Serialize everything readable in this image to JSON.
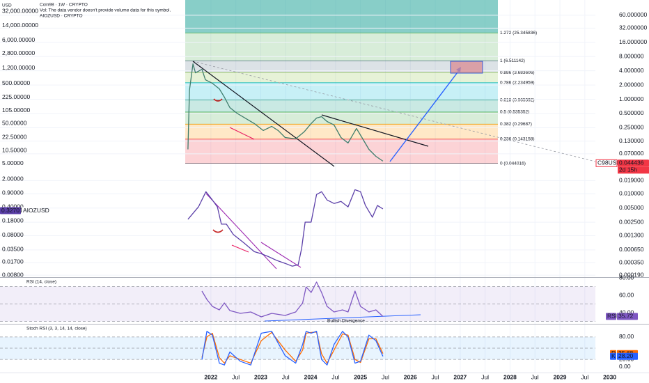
{
  "chart_data": [
    {
      "type": "line",
      "title": "Coin98 · 1W · CRYPTO",
      "subtitle": "Vol: The data vendor doesn't provide volume data for this symbol.",
      "y2label": "USD",
      "log_scale": true,
      "grid": true,
      "xlim": [
        2017.77,
        2030.41
      ],
      "xticks": [
        2022,
        {
          "value": 2022.5,
          "label": "Jul"
        },
        2023,
        {
          "value": 2023.5,
          "label": "Jul"
        },
        2024,
        {
          "value": 2024.5,
          "label": "Jul"
        },
        2025,
        {
          "value": 2025.5,
          "label": "Jul"
        },
        2026,
        {
          "value": 2026.5,
          "label": "Jul"
        },
        2027,
        {
          "value": 2027.5,
          "label": "Jul"
        },
        2028,
        {
          "value": 2028.5,
          "label": "Jul"
        },
        2029,
        {
          "value": 2029.5,
          "label": "Jul"
        },
        2030
      ],
      "ylim": [
        0.000172,
        126
      ],
      "yticks": [
        {
          "value": 60,
          "label": "60.000000"
        },
        {
          "value": 32,
          "label": "32.000000"
        },
        {
          "value": 16,
          "label": "16.000000"
        },
        {
          "value": 8,
          "label": "8.000000"
        },
        {
          "value": 4,
          "label": "4.000000"
        },
        {
          "value": 2,
          "label": "2.000000"
        },
        {
          "value": 1,
          "label": "1.000000"
        },
        {
          "value": 0.5,
          "label": "0.500000"
        },
        {
          "value": 0.25,
          "label": "0.250000"
        },
        {
          "value": 0.13,
          "label": "0.130000"
        },
        {
          "value": 0.07,
          "label": "0.070000"
        },
        {
          "value": 0.019,
          "label": "0.019000"
        },
        {
          "value": 0.01,
          "label": "0.010000"
        },
        {
          "value": 0.005,
          "label": "0.005000"
        },
        {
          "value": 0.0025,
          "label": "0.002500"
        },
        {
          "value": 0.0013,
          "label": "0.001300"
        },
        {
          "value": 0.00065,
          "label": "0.000650"
        },
        {
          "value": 0.00035,
          "label": "0.000350"
        },
        {
          "value": 0.00019,
          "label": "0.000190"
        }
      ],
      "y2lim": [
        0.0071,
        60800
      ],
      "y2ticks": [
        {
          "value": 32000,
          "label": "32,000.00000"
        },
        {
          "value": 14000,
          "label": "14,000.00000"
        },
        {
          "value": 6000,
          "label": "6,000.00000"
        },
        {
          "value": 2800,
          "label": "2,800.00000"
        },
        {
          "value": 1200,
          "label": "1,200.00000"
        },
        {
          "value": 500,
          "label": "500.00000"
        },
        {
          "value": 225,
          "label": "225.00000"
        },
        {
          "value": 105,
          "label": "105.00000"
        },
        {
          "value": 50,
          "label": "50.00000"
        },
        {
          "value": 22.5,
          "label": "22.50000"
        },
        {
          "value": 10.5,
          "label": "10.50000"
        },
        {
          "value": 5,
          "label": "5.00000"
        },
        {
          "value": 2,
          "label": "2.00000"
        },
        {
          "value": 0.9,
          "label": "0.90000"
        },
        {
          "value": 0.4,
          "label": "0.40000"
        },
        {
          "value": 0.18,
          "label": "0.18000"
        },
        {
          "value": 0.08,
          "label": "0.08000"
        },
        {
          "value": 0.035,
          "label": "0.03500"
        },
        {
          "value": 0.017,
          "label": "0.01700"
        },
        {
          "value": 0.008,
          "label": "0.00800"
        }
      ],
      "series": [
        {
          "name": "C98USD",
          "color": "#3e7d6c",
          "tag_color": "#f23645",
          "last": 0.044436,
          "countdown": "2d 15h",
          "x": [
            2021.54,
            2021.57,
            2021.64,
            2021.69,
            2021.82,
            2021.89,
            2022.03,
            2022.17,
            2022.27,
            2022.38,
            2022.52,
            2022.73,
            2022.87,
            2023.05,
            2023.22,
            2023.35,
            2023.49,
            2023.7,
            2023.87,
            2024.01,
            2024.12,
            2024.22,
            2024.33,
            2024.47,
            2024.61,
            2024.75,
            2024.92,
            2025.03,
            2025.17,
            2025.31,
            2025.45
          ],
          "values": [
            0.087,
            1.55,
            5.62,
            3.62,
            4.29,
            2.58,
            2.18,
            1.66,
            1.11,
            0.667,
            0.508,
            0.375,
            0.306,
            0.218,
            0.267,
            0.218,
            0.155,
            0.145,
            0.204,
            0.306,
            0.401,
            0.429,
            0.338,
            0.286,
            0.155,
            0.119,
            0.241,
            0.155,
            0.087,
            0.062,
            0.049
          ]
        },
        {
          "name": "AIOZUSD",
          "legend": "AIOZUSD · CRYPTO",
          "axis": "y2",
          "color": "#5b3fa8",
          "last": 0.32701,
          "x": [
            2021.54,
            2021.75,
            2021.9,
            2022.03,
            2022.13,
            2022.21,
            2022.31,
            2022.45,
            2022.66,
            2022.87,
            2023.01,
            2023.15,
            2023.33,
            2023.49,
            2023.63,
            2023.75,
            2023.82,
            2023.89,
            2024.01,
            2024.12,
            2024.22,
            2024.33,
            2024.47,
            2024.61,
            2024.75,
            2024.89,
            2025.0,
            2025.1,
            2025.24,
            2025.34,
            2025.45
          ],
          "values": [
            0.199,
            0.406,
            0.972,
            0.604,
            0.406,
            0.15,
            0.15,
            0.083,
            0.0515,
            0.0308,
            0.0273,
            0.0233,
            0.0184,
            0.0157,
            0.0134,
            0.0145,
            0.0375,
            0.169,
            0.169,
            0.83,
            0.972,
            0.604,
            0.495,
            0.557,
            0.406,
            1.09,
            0.972,
            0.44,
            0.224,
            0.44,
            0.361
          ]
        }
      ],
      "fib_top_color": "#26a69a",
      "fib_levels": [
        {
          "value": 0.044016,
          "label": "0 (0.044016)",
          "color": "#787b86"
        },
        {
          "value": 0.143158,
          "label": "0.236 (0.143158)",
          "color": "#f23645"
        },
        {
          "value": 0.29687,
          "label": "0.382 (0.29687)",
          "color": "#ff9800"
        },
        {
          "value": 0.535352,
          "label": "0.5 (0.535352)",
          "color": "#4caf50"
        },
        {
          "value": 0.965592,
          "label": "0.618 (0.965592)",
          "color": "#089981"
        },
        {
          "value": 2.234959,
          "label": "0.786 (2.234959)",
          "color": "#00bcd4"
        },
        {
          "value": 3.683606,
          "label": "0.886 (3.683606)",
          "color": "#8bc34a"
        },
        {
          "value": 6.511142,
          "label": "1 (6.511142)",
          "color": "#607d8b"
        },
        {
          "value": 25.345836,
          "label": "1.272 (25.345836)",
          "color": "#4caf50"
        }
      ]
    },
    {
      "type": "line",
      "title": "RSI (14, close)",
      "ylim": [
        27.2,
        80.8
      ],
      "yticks": [
        {
          "value": 80,
          "label": "80.00"
        },
        {
          "value": 60,
          "label": "60.00"
        },
        {
          "value": 40,
          "label": "40.00"
        }
      ],
      "levels": [
        70,
        50,
        30
      ],
      "band_color": "#7e57c2",
      "annotation": "Bullish Divergence",
      "x": [
        2021.82,
        2021.92,
        2022.03,
        2022.17,
        2022.27,
        2022.38,
        2022.59,
        2022.8,
        2023.01,
        2023.22,
        2023.49,
        2023.7,
        2023.84,
        2023.91,
        2024.01,
        2024.12,
        2024.22,
        2024.33,
        2024.47,
        2024.64,
        2024.75,
        2024.89,
        2025.0,
        2025.17,
        2025.31,
        2025.45
      ],
      "series": [
        {
          "name": "RSI",
          "color": "#7e57c2",
          "last": 35.72,
          "values": [
            64.8,
            55.2,
            47.2,
            43.2,
            51.2,
            42.4,
            39.2,
            40.8,
            35.2,
            39.2,
            36.8,
            40.8,
            51.2,
            69.6,
            63.2,
            75.2,
            63.2,
            47.2,
            40.8,
            43.2,
            40.8,
            64.8,
            47.2,
            40.8,
            43.2,
            35.72
          ]
        }
      ]
    },
    {
      "type": "line",
      "title": "Stoch RSI (3, 3, 14, 14, close)",
      "ylim": [
        -15,
        115
      ],
      "yticks": [
        {
          "value": 80,
          "label": "80.00"
        },
        {
          "value": 20,
          "label": "20.00"
        },
        {
          "value": 0,
          "label": "0.00"
        }
      ],
      "levels": [
        80,
        50,
        20
      ],
      "band_color": "#2196f3",
      "x": [
        2021.82,
        2021.92,
        2022.03,
        2022.17,
        2022.27,
        2022.38,
        2022.59,
        2022.8,
        2023.01,
        2023.22,
        2023.49,
        2023.7,
        2023.84,
        2023.91,
        2024.01,
        2024.12,
        2024.22,
        2024.33,
        2024.47,
        2024.64,
        2024.75,
        2024.89,
        2025.0,
        2025.17,
        2025.31,
        2025.45
      ],
      "series": [
        {
          "name": "D",
          "color": "#ff6d00",
          "last": 35.68,
          "values": [
            25,
            80,
            90,
            25,
            10,
            30,
            20,
            10,
            70,
            92,
            45,
            15,
            45,
            90,
            92,
            93,
            35,
            10,
            45,
            88,
            85,
            20,
            12,
            75,
            75,
            35.68
          ]
        },
        {
          "name": "K",
          "color": "#2962ff",
          "last": {
            "value": 28.2,
            "label": "28.20"
          },
          "values": [
            20,
            95,
            85,
            10,
            5,
            40,
            15,
            5,
            90,
            95,
            30,
            10,
            60,
            95,
            90,
            95,
            20,
            5,
            60,
            95,
            80,
            10,
            15,
            85,
            70,
            28.2
          ]
        }
      ]
    }
  ]
}
